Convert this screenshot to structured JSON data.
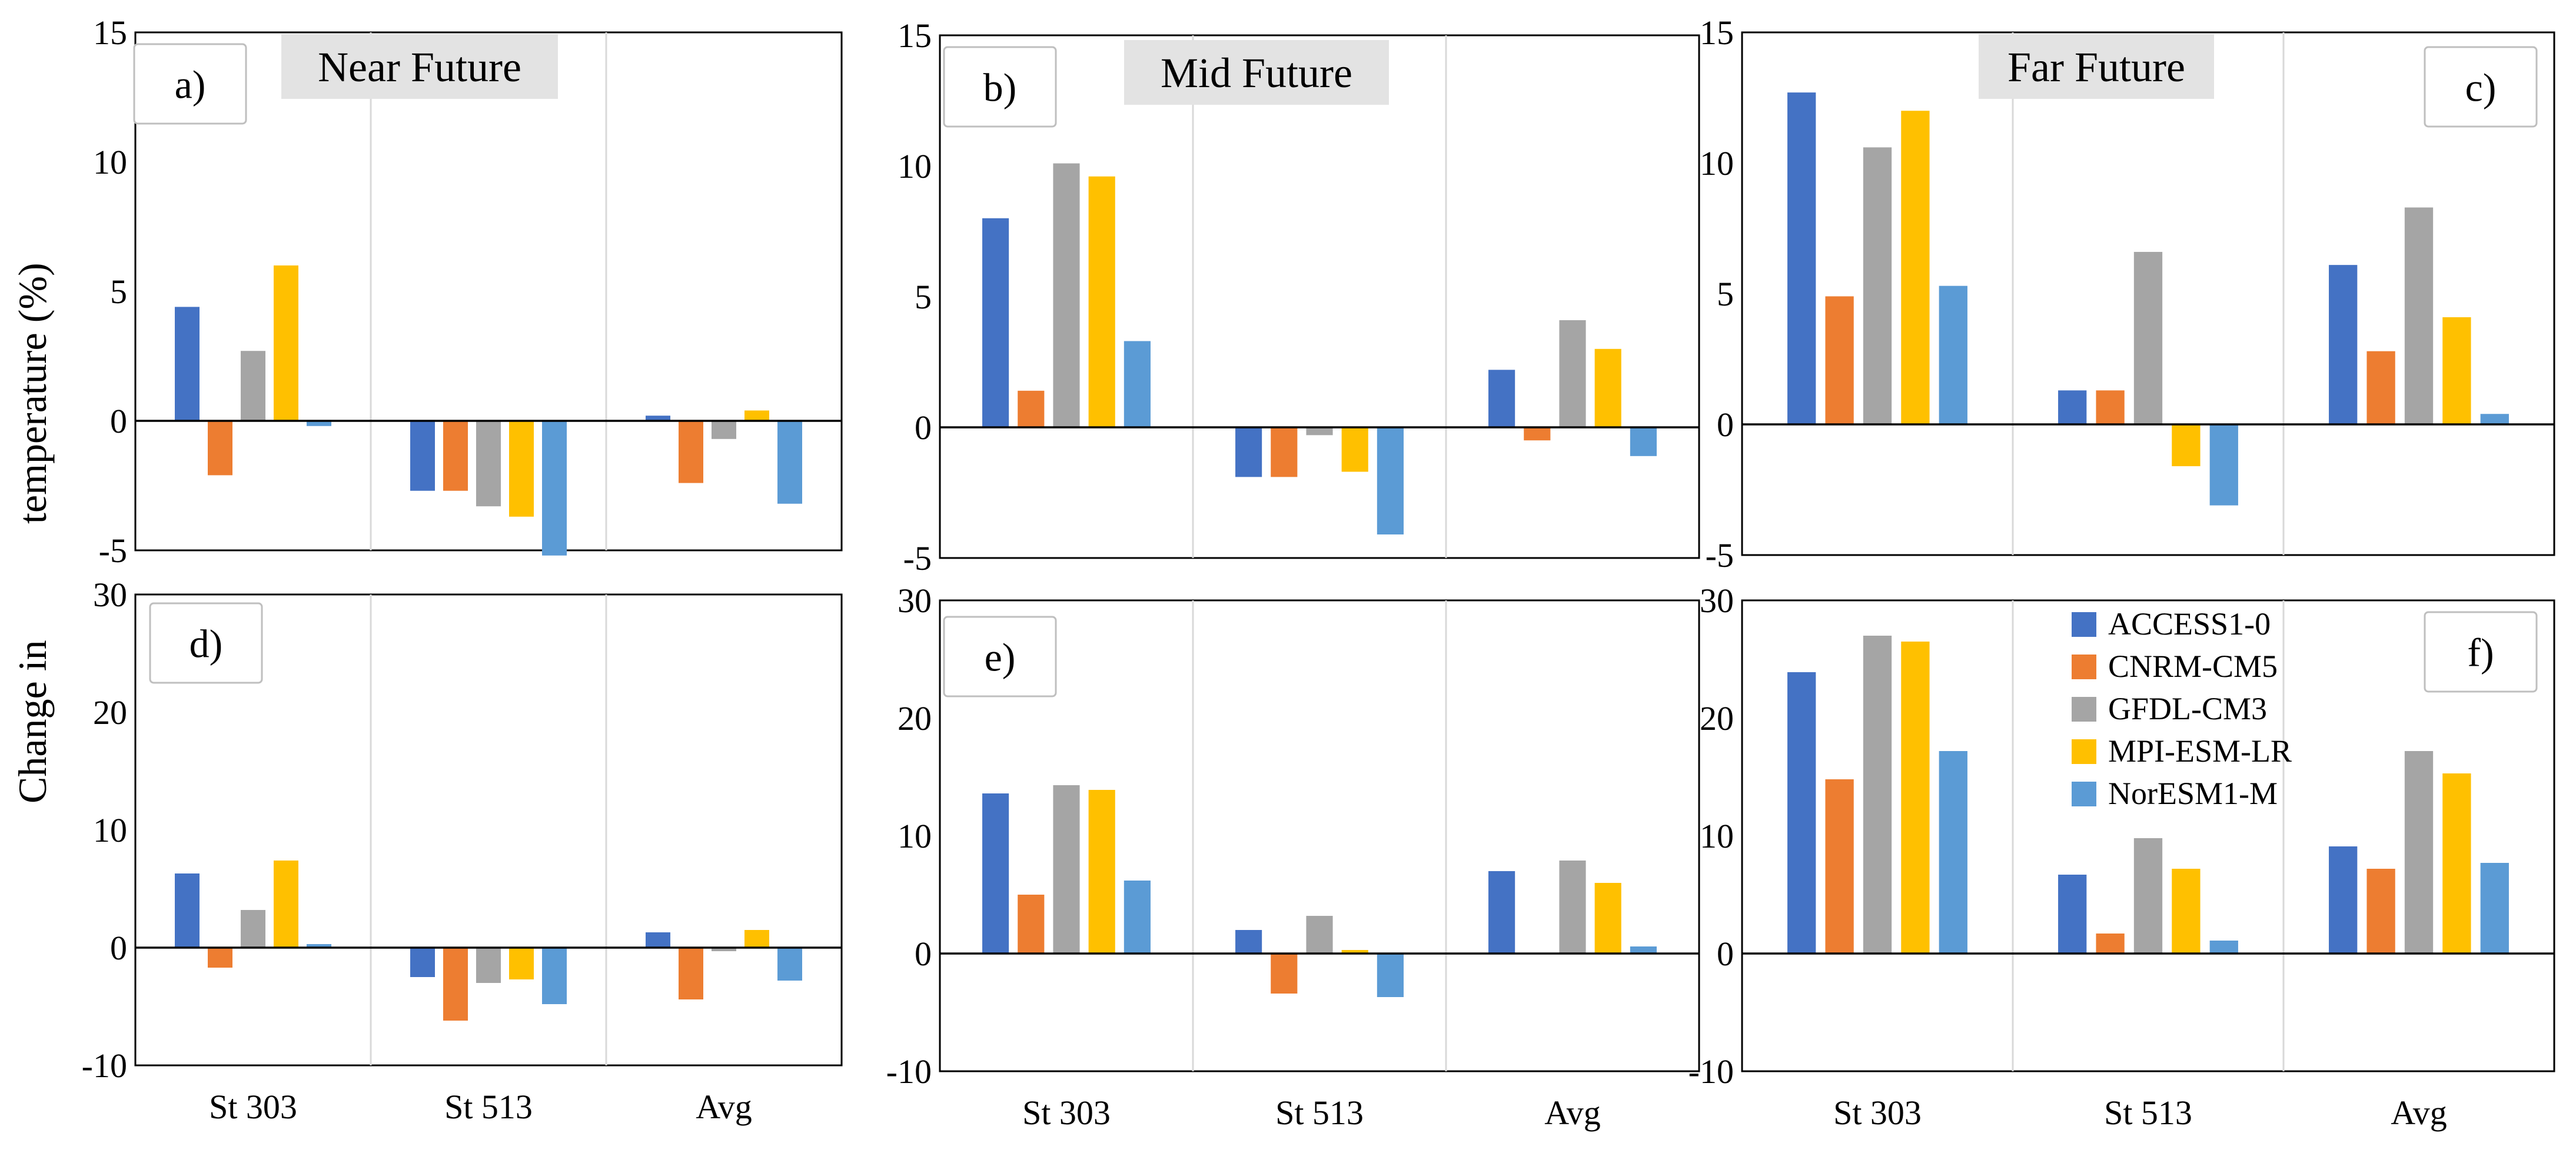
{
  "ylabel_parts": [
    "Change in",
    "temperature (%)"
  ],
  "chart_data": [
    {
      "id": "a",
      "type": "bar",
      "label": "a)",
      "title": "Near Future",
      "categories": [
        "St 303",
        "St 513",
        "Avg"
      ],
      "ylim": [
        -5,
        15
      ],
      "yticks": [
        -5,
        0,
        5,
        10,
        15
      ],
      "series": [
        {
          "name": "ACCESS1-0",
          "color": "#4472C4",
          "values": [
            4.4,
            -2.7,
            0.2
          ]
        },
        {
          "name": "CNRM-CM5",
          "color": "#ED7D31",
          "values": [
            -2.1,
            -2.7,
            -2.4
          ]
        },
        {
          "name": "GFDL-CM3",
          "color": "#A5A5A5",
          "values": [
            2.7,
            -3.3,
            -0.7
          ]
        },
        {
          "name": "MPI-ESM-LR",
          "color": "#FFC000",
          "values": [
            6.0,
            -3.7,
            0.4
          ]
        },
        {
          "name": "NorESM1-M",
          "color": "#5B9BD5",
          "values": [
            -0.2,
            -5.2,
            -3.2
          ]
        }
      ]
    },
    {
      "id": "b",
      "type": "bar",
      "label": "b)",
      "title": "Mid Future",
      "categories": [
        "St 303",
        "St 513",
        "Avg"
      ],
      "ylim": [
        -5,
        15
      ],
      "yticks": [
        -5,
        0,
        5,
        10,
        15
      ],
      "series": [
        {
          "name": "ACCESS1-0",
          "color": "#4472C4",
          "values": [
            8.0,
            -1.9,
            2.2
          ]
        },
        {
          "name": "CNRM-CM5",
          "color": "#ED7D31",
          "values": [
            1.4,
            -1.9,
            -0.5
          ]
        },
        {
          "name": "GFDL-CM3",
          "color": "#A5A5A5",
          "values": [
            10.1,
            -0.3,
            4.1
          ]
        },
        {
          "name": "MPI-ESM-LR",
          "color": "#FFC000",
          "values": [
            9.6,
            -1.7,
            3.0
          ]
        },
        {
          "name": "NorESM1-M",
          "color": "#5B9BD5",
          "values": [
            3.3,
            -4.1,
            -1.1
          ]
        }
      ]
    },
    {
      "id": "c",
      "type": "bar",
      "label": "c)",
      "title": "Far Future",
      "categories": [
        "St 303",
        "St 513",
        "Avg"
      ],
      "ylim": [
        -5,
        15
      ],
      "yticks": [
        -5,
        0,
        5,
        10,
        15
      ],
      "series": [
        {
          "name": "ACCESS1-0",
          "color": "#4472C4",
          "values": [
            12.7,
            1.3,
            6.1
          ]
        },
        {
          "name": "CNRM-CM5",
          "color": "#ED7D31",
          "values": [
            4.9,
            1.3,
            2.8
          ]
        },
        {
          "name": "GFDL-CM3",
          "color": "#A5A5A5",
          "values": [
            10.6,
            6.6,
            8.3
          ]
        },
        {
          "name": "MPI-ESM-LR",
          "color": "#FFC000",
          "values": [
            12.0,
            -1.6,
            4.1
          ]
        },
        {
          "name": "NorESM1-M",
          "color": "#5B9BD5",
          "values": [
            5.3,
            -3.1,
            0.4
          ]
        }
      ]
    },
    {
      "id": "d",
      "type": "bar",
      "label": "d)",
      "title": "",
      "categories": [
        "St 303",
        "St 513",
        "Avg"
      ],
      "ylim": [
        -10,
        30
      ],
      "yticks": [
        -10,
        0,
        10,
        20,
        30
      ],
      "series": [
        {
          "name": "ACCESS1-0",
          "color": "#4472C4",
          "values": [
            6.3,
            -2.5,
            1.3
          ]
        },
        {
          "name": "CNRM-CM5",
          "color": "#ED7D31",
          "values": [
            -1.7,
            -6.2,
            -4.4
          ]
        },
        {
          "name": "GFDL-CM3",
          "color": "#A5A5A5",
          "values": [
            3.2,
            -3.0,
            -0.3
          ]
        },
        {
          "name": "MPI-ESM-LR",
          "color": "#FFC000",
          "values": [
            7.4,
            -2.7,
            1.5
          ]
        },
        {
          "name": "NorESM1-M",
          "color": "#5B9BD5",
          "values": [
            0.3,
            -4.8,
            -2.8
          ]
        }
      ]
    },
    {
      "id": "e",
      "type": "bar",
      "label": "e)",
      "title": "",
      "categories": [
        "St 303",
        "St 513",
        "Avg"
      ],
      "ylim": [
        -10,
        30
      ],
      "yticks": [
        -10,
        0,
        10,
        20,
        30
      ],
      "series": [
        {
          "name": "ACCESS1-0",
          "color": "#4472C4",
          "values": [
            13.6,
            2.0,
            7.0
          ]
        },
        {
          "name": "CNRM-CM5",
          "color": "#ED7D31",
          "values": [
            5.0,
            -3.4,
            0.0
          ]
        },
        {
          "name": "GFDL-CM3",
          "color": "#A5A5A5",
          "values": [
            14.3,
            3.2,
            7.9
          ]
        },
        {
          "name": "MPI-ESM-LR",
          "color": "#FFC000",
          "values": [
            13.9,
            0.3,
            6.0
          ]
        },
        {
          "name": "NorESM1-M",
          "color": "#5B9BD5",
          "values": [
            6.2,
            -3.7,
            0.6
          ]
        }
      ]
    },
    {
      "id": "f",
      "type": "bar",
      "label": "f)",
      "title": "",
      "categories": [
        "St 303",
        "St 513",
        "Avg"
      ],
      "ylim": [
        -10,
        30
      ],
      "yticks": [
        -10,
        0,
        10,
        20,
        30
      ],
      "legend": "top-center",
      "series": [
        {
          "name": "ACCESS1-0",
          "color": "#4472C4",
          "values": [
            23.9,
            6.7,
            9.1
          ]
        },
        {
          "name": "CNRM-CM5",
          "color": "#ED7D31",
          "values": [
            14.8,
            1.7,
            7.2
          ]
        },
        {
          "name": "GFDL-CM3",
          "color": "#A5A5A5",
          "values": [
            27.0,
            9.8,
            17.2
          ]
        },
        {
          "name": "MPI-ESM-LR",
          "color": "#FFC000",
          "values": [
            26.5,
            7.2,
            15.3
          ]
        },
        {
          "name": "NorESM1-M",
          "color": "#5B9BD5",
          "values": [
            17.2,
            1.1,
            7.7
          ]
        }
      ]
    }
  ]
}
